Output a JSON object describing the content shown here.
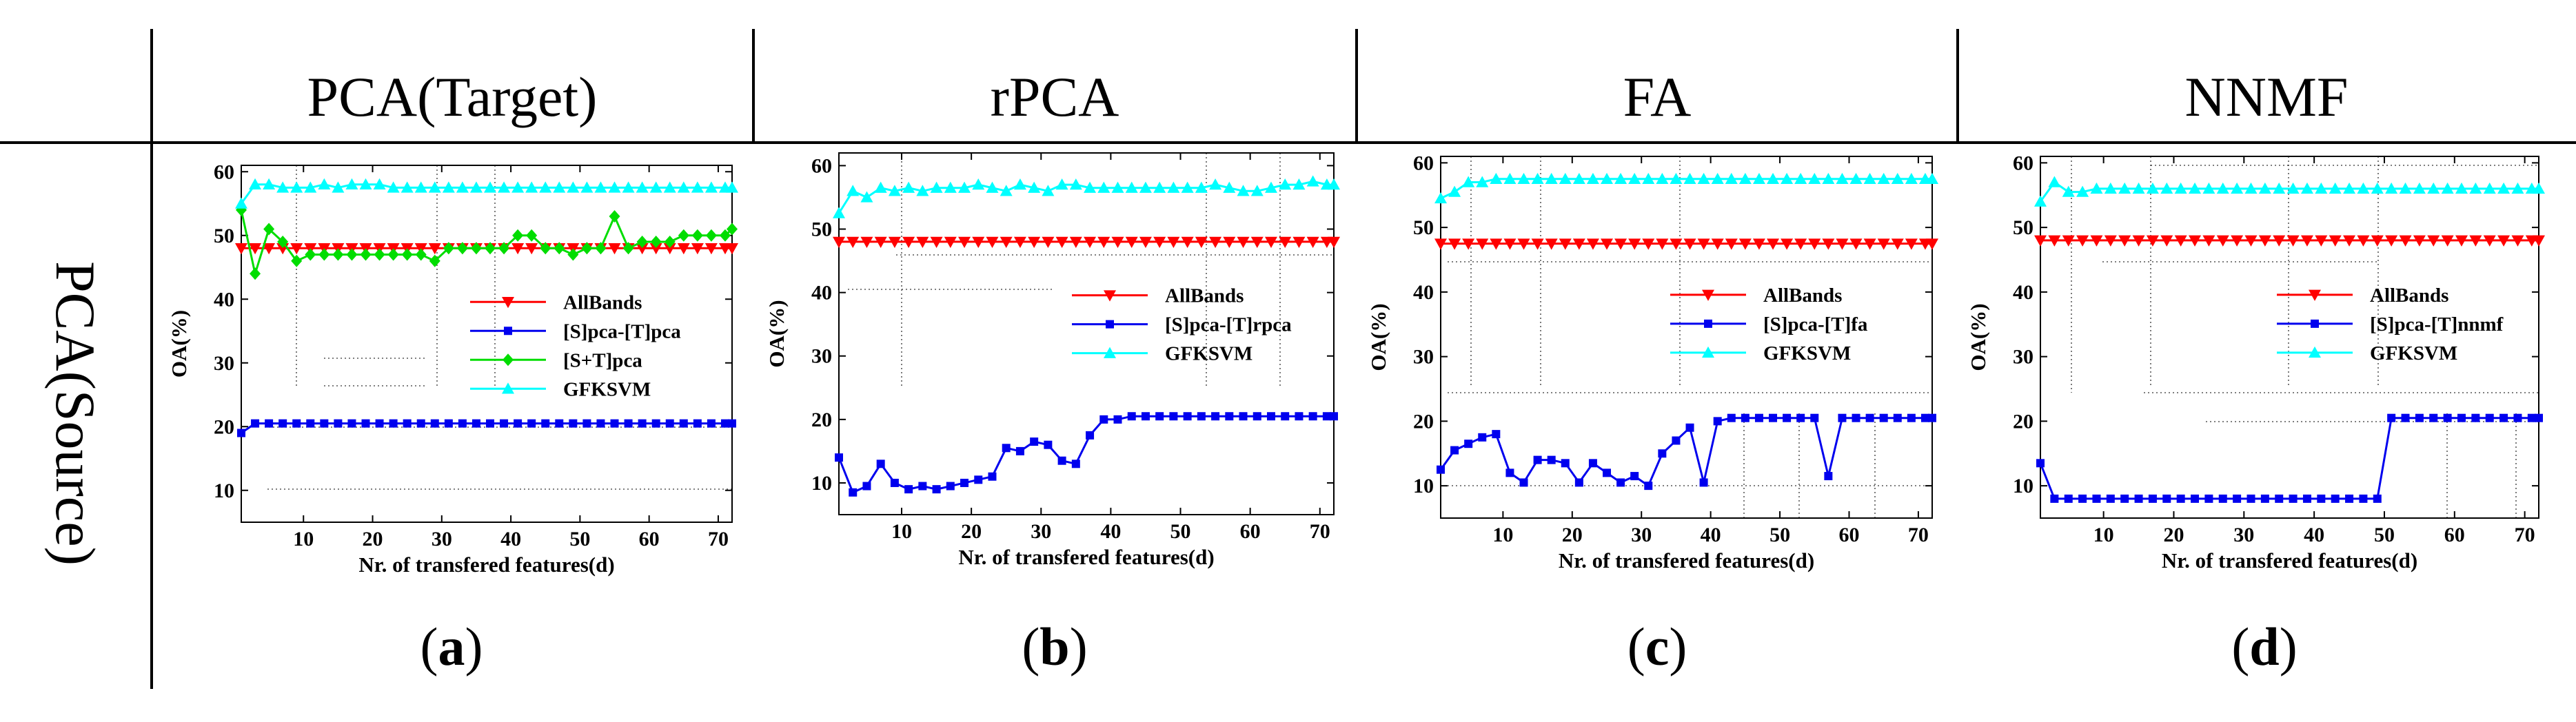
{
  "header": {
    "columns": [
      "PCA(Target)",
      "rPCA",
      "FA",
      "NNMF"
    ],
    "row_label": "PCA(Source)"
  },
  "colors": {
    "allbands": "#ff0000",
    "transfer": "#0000ee",
    "combined": "#00dd00",
    "gfksvm": "#00ffff"
  },
  "chart_data": [
    {
      "type": "line",
      "panel": "a",
      "subcaption": [
        "(",
        "a",
        ")"
      ],
      "xlabel": "Nr. of transfered features(d)",
      "ylabel": "OA(%)",
      "xlim": [
        1,
        72
      ],
      "ylim": [
        5,
        61
      ],
      "xticks": [
        10,
        20,
        30,
        40,
        50,
        60,
        70
      ],
      "yticks": [
        10,
        20,
        30,
        40,
        50,
        60
      ],
      "x": [
        1,
        3,
        5,
        7,
        9,
        11,
        13,
        15,
        17,
        19,
        21,
        23,
        25,
        27,
        29,
        31,
        33,
        35,
        37,
        39,
        41,
        43,
        45,
        47,
        49,
        51,
        53,
        55,
        57,
        59,
        61,
        63,
        65,
        67,
        69,
        71,
        72
      ],
      "series": [
        {
          "name": "AllBands",
          "color": "#ff0000",
          "marker": "triangle-down",
          "values": [
            48,
            48,
            48,
            48,
            48,
            48,
            48,
            48,
            48,
            48,
            48,
            48,
            48,
            48,
            48,
            48,
            48,
            48,
            48,
            48,
            48,
            48,
            48,
            48,
            48,
            48,
            48,
            48,
            48,
            48,
            48,
            48,
            48,
            48,
            48,
            48,
            48
          ]
        },
        {
          "name": "[S]pca-[T]pca",
          "color": "#0000ee",
          "marker": "square",
          "values": [
            19,
            20.5,
            20.5,
            20.5,
            20.5,
            20.5,
            20.5,
            20.5,
            20.5,
            20.5,
            20.5,
            20.5,
            20.5,
            20.5,
            20.5,
            20.5,
            20.5,
            20.5,
            20.5,
            20.5,
            20.5,
            20.5,
            20.5,
            20.5,
            20.5,
            20.5,
            20.5,
            20.5,
            20.5,
            20.5,
            20.5,
            20.5,
            20.5,
            20.5,
            20.5,
            20.5,
            20.5
          ]
        },
        {
          "name": "[S+T]pca",
          "color": "#00dd00",
          "marker": "diamond",
          "values": [
            54,
            44,
            51,
            49,
            46,
            47,
            47,
            47,
            47,
            47,
            47,
            47,
            47,
            47,
            46,
            48,
            48,
            48,
            48,
            48,
            50,
            50,
            48,
            48,
            47,
            48,
            48,
            53,
            48,
            49,
            49,
            49,
            50,
            50,
            50,
            50,
            51
          ]
        },
        {
          "name": "GFKSVM",
          "color": "#00ffff",
          "marker": "triangle-up",
          "values": [
            55,
            58,
            58,
            57.5,
            57.5,
            57.5,
            58,
            57.5,
            58,
            58,
            58,
            57.5,
            57.5,
            57.5,
            57.5,
            57.5,
            57.5,
            57.5,
            57.5,
            57.5,
            57.5,
            57.5,
            57.5,
            57.5,
            57.5,
            57.5,
            57.5,
            57.5,
            57.5,
            57.5,
            57.5,
            57.5,
            57.5,
            57.5,
            57.5,
            57.5,
            57.5
          ]
        }
      ]
    },
    {
      "type": "line",
      "panel": "b",
      "subcaption": [
        "(",
        "b",
        ")"
      ],
      "xlabel": "Nr. of transfered features(d)",
      "ylabel": "OA(%)",
      "xlim": [
        1,
        72
      ],
      "ylim": [
        5,
        62
      ],
      "xticks": [
        10,
        20,
        30,
        40,
        50,
        60,
        70
      ],
      "yticks": [
        10,
        20,
        30,
        40,
        50,
        60
      ],
      "x": [
        1,
        3,
        5,
        7,
        9,
        11,
        13,
        15,
        17,
        19,
        21,
        23,
        25,
        27,
        29,
        31,
        33,
        35,
        37,
        39,
        41,
        43,
        45,
        47,
        49,
        51,
        53,
        55,
        57,
        59,
        61,
        63,
        65,
        67,
        69,
        71,
        72
      ],
      "series": [
        {
          "name": "AllBands",
          "color": "#ff0000",
          "marker": "triangle-down",
          "values": [
            48,
            48,
            48,
            48,
            48,
            48,
            48,
            48,
            48,
            48,
            48,
            48,
            48,
            48,
            48,
            48,
            48,
            48,
            48,
            48,
            48,
            48,
            48,
            48,
            48,
            48,
            48,
            48,
            48,
            48,
            48,
            48,
            48,
            48,
            48,
            48,
            48
          ]
        },
        {
          "name": "[S]pca-[T]rpca",
          "color": "#0000ee",
          "marker": "square",
          "values": [
            14,
            8.5,
            9.5,
            13,
            10,
            9,
            9.5,
            9,
            9.5,
            10,
            10.5,
            11,
            15.5,
            15,
            16.5,
            16,
            13.5,
            13,
            17.5,
            20,
            20,
            20.5,
            20.5,
            20.5,
            20.5,
            20.5,
            20.5,
            20.5,
            20.5,
            20.5,
            20.5,
            20.5,
            20.5,
            20.5,
            20.5,
            20.5,
            20.5
          ]
        },
        {
          "name": "GFKSVM",
          "color": "#00ffff",
          "marker": "triangle-up",
          "values": [
            52.5,
            56,
            55,
            56.5,
            56,
            56.5,
            56,
            56.5,
            56.5,
            56.5,
            57,
            56.5,
            56,
            57,
            56.5,
            56,
            57,
            57,
            56.5,
            56.5,
            56.5,
            56.5,
            56.5,
            56.5,
            56.5,
            56.5,
            56.5,
            57,
            56.5,
            56,
            56,
            56.5,
            57,
            57,
            57.5,
            57,
            57
          ]
        }
      ]
    },
    {
      "type": "line",
      "panel": "c",
      "subcaption": [
        "(",
        "c",
        ")"
      ],
      "xlabel": "Nr. of transfered features(d)",
      "ylabel": "OA(%)",
      "xlim": [
        1,
        72
      ],
      "ylim": [
        5,
        61
      ],
      "xticks": [
        10,
        20,
        30,
        40,
        50,
        60,
        70
      ],
      "yticks": [
        10,
        20,
        30,
        40,
        50,
        60
      ],
      "x": [
        1,
        3,
        5,
        7,
        9,
        11,
        13,
        15,
        17,
        19,
        21,
        23,
        25,
        27,
        29,
        31,
        33,
        35,
        37,
        39,
        41,
        43,
        45,
        47,
        49,
        51,
        53,
        55,
        57,
        59,
        61,
        63,
        65,
        67,
        69,
        71,
        72
      ],
      "series": [
        {
          "name": "AllBands",
          "color": "#ff0000",
          "marker": "triangle-down",
          "values": [
            47.5,
            47.5,
            47.5,
            47.5,
            47.5,
            47.5,
            47.5,
            47.5,
            47.5,
            47.5,
            47.5,
            47.5,
            47.5,
            47.5,
            47.5,
            47.5,
            47.5,
            47.5,
            47.5,
            47.5,
            47.5,
            47.5,
            47.5,
            47.5,
            47.5,
            47.5,
            47.5,
            47.5,
            47.5,
            47.5,
            47.5,
            47.5,
            47.5,
            47.5,
            47.5,
            47.5,
            47.5
          ]
        },
        {
          "name": "[S]pca-[T]fa",
          "color": "#0000ee",
          "marker": "square",
          "values": [
            12.5,
            15.5,
            16.5,
            17.5,
            18,
            12,
            10.5,
            14,
            14,
            13.5,
            10.5,
            13.5,
            12,
            10.5,
            11.5,
            10,
            15,
            17,
            19,
            10.5,
            20,
            20.5,
            20.5,
            20.5,
            20.5,
            20.5,
            20.5,
            20.5,
            11.5,
            20.5,
            20.5,
            20.5,
            20.5,
            20.5,
            20.5,
            20.5,
            20.5
          ]
        },
        {
          "name": "GFKSVM",
          "color": "#00ffff",
          "marker": "triangle-up",
          "values": [
            54.5,
            55.5,
            57,
            57,
            57.5,
            57.5,
            57.5,
            57.5,
            57.5,
            57.5,
            57.5,
            57.5,
            57.5,
            57.5,
            57.5,
            57.5,
            57.5,
            57.5,
            57.5,
            57.5,
            57.5,
            57.5,
            57.5,
            57.5,
            57.5,
            57.5,
            57.5,
            57.5,
            57.5,
            57.5,
            57.5,
            57.5,
            57.5,
            57.5,
            57.5,
            57.5,
            57.5
          ]
        }
      ]
    },
    {
      "type": "line",
      "panel": "d",
      "subcaption": [
        "(",
        "d",
        ")"
      ],
      "xlabel": "Nr. of transfered features(d)",
      "ylabel": "OA(%)",
      "xlim": [
        1,
        72
      ],
      "ylim": [
        5,
        61
      ],
      "xticks": [
        10,
        20,
        30,
        40,
        50,
        60,
        70
      ],
      "yticks": [
        10,
        20,
        30,
        40,
        50,
        60
      ],
      "x": [
        1,
        3,
        5,
        7,
        9,
        11,
        13,
        15,
        17,
        19,
        21,
        23,
        25,
        27,
        29,
        31,
        33,
        35,
        37,
        39,
        41,
        43,
        45,
        47,
        49,
        51,
        53,
        55,
        57,
        59,
        61,
        63,
        65,
        67,
        69,
        71,
        72
      ],
      "series": [
        {
          "name": "AllBands",
          "color": "#ff0000",
          "marker": "triangle-down",
          "values": [
            48,
            48,
            48,
            48,
            48,
            48,
            48,
            48,
            48,
            48,
            48,
            48,
            48,
            48,
            48,
            48,
            48,
            48,
            48,
            48,
            48,
            48,
            48,
            48,
            48,
            48,
            48,
            48,
            48,
            48,
            48,
            48,
            48,
            48,
            48,
            48,
            48
          ]
        },
        {
          "name": "[S]pca-[T]nnmf",
          "color": "#0000ee",
          "marker": "square",
          "values": [
            13.5,
            8,
            8,
            8,
            8,
            8,
            8,
            8,
            8,
            8,
            8,
            8,
            8,
            8,
            8,
            8,
            8,
            8,
            8,
            8,
            8,
            8,
            8,
            8,
            8,
            20.5,
            20.5,
            20.5,
            20.5,
            20.5,
            20.5,
            20.5,
            20.5,
            20.5,
            20.5,
            20.5,
            20.5
          ]
        },
        {
          "name": "GFKSVM",
          "color": "#00ffff",
          "marker": "triangle-up",
          "values": [
            54,
            57,
            55.5,
            55.5,
            56,
            56,
            56,
            56,
            56,
            56,
            56,
            56,
            56,
            56,
            56,
            56,
            56,
            56,
            56,
            56,
            56,
            56,
            56,
            56,
            56,
            56,
            56,
            56,
            56,
            56,
            56,
            56,
            56,
            56,
            56,
            56,
            56
          ]
        }
      ]
    }
  ]
}
